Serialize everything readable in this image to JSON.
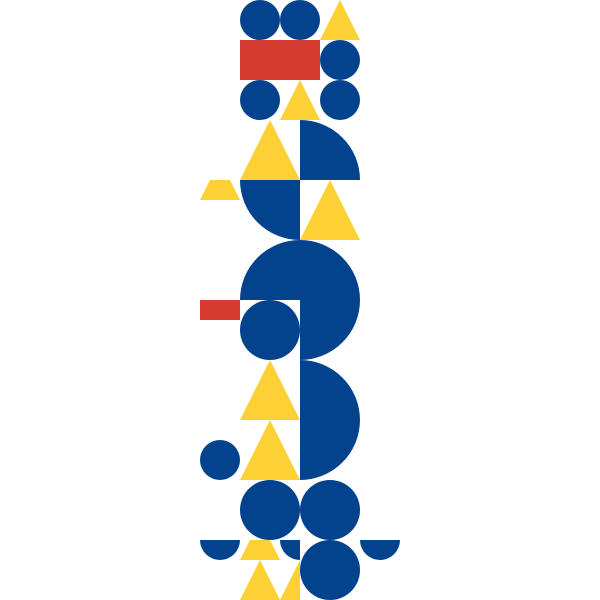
{
  "artwork": {
    "style": "geometric-composition",
    "palette": {
      "background": "#ffffff",
      "blue": "#03428c",
      "yellow": "#fdd136",
      "red": "#d63b30"
    },
    "shape_kinds": [
      "circle",
      "triangle",
      "rectangle",
      "quarter-disc",
      "half-disc"
    ]
  }
}
